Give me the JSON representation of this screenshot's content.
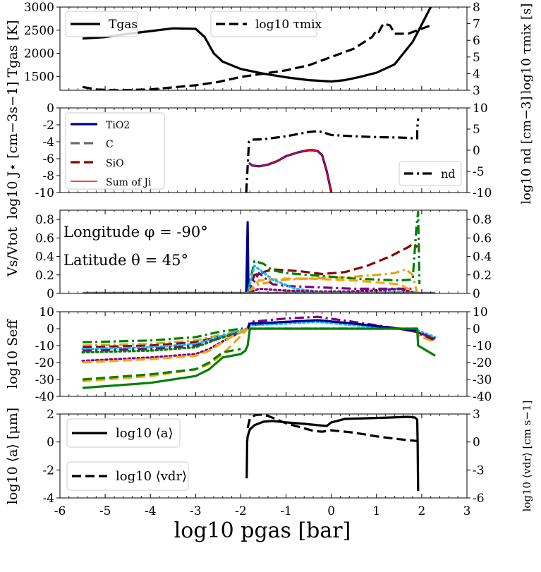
{
  "figure": {
    "longitude_label": "Longitude φ = -90°",
    "latitude_label": "Latitude θ = 45°",
    "shared_xlabel": "log10 pgas [bar]"
  },
  "chart_data": [
    {
      "type": "line",
      "panel": "temperature",
      "xlim": [
        -6,
        3
      ],
      "ylabel": "Tgas [K]",
      "ylim": [
        1200,
        3000
      ],
      "yticks": [
        1500,
        2000,
        2500,
        3000
      ],
      "y2label": "log10 τmix [s]",
      "y2lim": [
        3,
        8
      ],
      "y2ticks": [
        3,
        4,
        5,
        6,
        7,
        8
      ],
      "series": [
        {
          "name": "Tgas",
          "axis": "left",
          "style": "solid",
          "color": "#000000",
          "x": [
            -5.5,
            -5.0,
            -4.5,
            -4.0,
            -3.5,
            -3.0,
            -2.8,
            -2.6,
            -2.4,
            -2.0,
            -1.5,
            -1.0,
            -0.5,
            0.0,
            0.3,
            0.6,
            1.0,
            1.4,
            1.8,
            2.2
          ],
          "y": [
            2320,
            2350,
            2420,
            2480,
            2540,
            2530,
            2350,
            2000,
            1820,
            1660,
            1560,
            1480,
            1420,
            1390,
            1420,
            1480,
            1580,
            1760,
            2250,
            3000
          ]
        },
        {
          "name": "log10 τmix",
          "axis": "right",
          "style": "dashed",
          "color": "#000000",
          "x": [
            -5.5,
            -5.2,
            -4.8,
            -4.0,
            -3.0,
            -2.5,
            -2.0,
            -1.5,
            -1.0,
            -0.5,
            0.0,
            0.5,
            0.9,
            1.0,
            1.05,
            1.15,
            1.3,
            1.4,
            1.5,
            1.7,
            1.9,
            2.2
          ],
          "y": [
            3.2,
            3.05,
            3.0,
            3.05,
            3.3,
            3.5,
            3.8,
            4.0,
            4.2,
            4.5,
            5.0,
            5.5,
            6.2,
            6.6,
            6.5,
            7.0,
            6.9,
            6.4,
            6.4,
            6.4,
            6.6,
            6.9
          ]
        }
      ]
    },
    {
      "type": "line",
      "panel": "nucleation",
      "xlim": [
        -6,
        3
      ],
      "ylabel": "log10 J⋆ [cm−3s−1]",
      "ylim": [
        -10,
        0
      ],
      "yticks": [
        -10,
        -8,
        -6,
        -4,
        -2,
        0
      ],
      "y2label": "log10 nd [cm−3]",
      "y2lim": [
        -10,
        10
      ],
      "y2ticks": [
        -10,
        -5,
        0,
        5,
        10
      ],
      "series": [
        {
          "name": "TiO2",
          "axis": "left",
          "style": "solid",
          "color": "#00008b",
          "x": [
            -1.82,
            -1.75,
            -1.6,
            -1.4,
            -1.2,
            -1.0,
            -0.7,
            -0.5,
            -0.4,
            -0.3,
            -0.2,
            -0.1,
            0.0
          ],
          "y": [
            -6.5,
            -6.8,
            -6.9,
            -6.7,
            -6.3,
            -5.7,
            -5.2,
            -5.0,
            -5.0,
            -5.1,
            -5.6,
            -7.5,
            -10.0
          ]
        },
        {
          "name": "C",
          "axis": "left",
          "style": "dashed",
          "color": "#696969",
          "x": [],
          "y": []
        },
        {
          "name": "SiO",
          "axis": "left",
          "style": "dashed",
          "color": "#8b0000",
          "x": [],
          "y": []
        },
        {
          "name": "Sum of Ji",
          "axis": "left",
          "style": "solid",
          "color": "#ff0000",
          "x": [
            -1.82,
            -1.75,
            -1.6,
            -1.4,
            -1.2,
            -1.0,
            -0.7,
            -0.5,
            -0.4,
            -0.3,
            -0.2,
            -0.1,
            0.0
          ],
          "y": [
            -6.5,
            -6.8,
            -6.9,
            -6.7,
            -6.3,
            -5.7,
            -5.2,
            -5.0,
            -5.0,
            -5.1,
            -5.6,
            -7.5,
            -10.0
          ]
        },
        {
          "name": "nd",
          "axis": "right",
          "style": "dashdot",
          "color": "#000000",
          "x": [
            -1.88,
            -1.82,
            -1.75,
            -1.5,
            -1.0,
            -0.5,
            -0.3,
            -0.2,
            0.0,
            0.5,
            1.0,
            1.5,
            1.9,
            1.9,
            1.92
          ],
          "y": [
            -10,
            2.0,
            2.5,
            2.6,
            3.3,
            4.3,
            4.5,
            4.3,
            3.6,
            3.3,
            3.1,
            3.0,
            2.8,
            5.0,
            7.5
          ]
        }
      ],
      "legend_right": {
        "name": "nd"
      }
    },
    {
      "type": "line",
      "panel": "volume_fractions",
      "xlim": [
        -6,
        3
      ],
      "ylabel": "Vs/Vtot",
      "ylim": [
        0,
        0.9
      ],
      "yticks": [
        0.0,
        0.2,
        0.4,
        0.6,
        0.8
      ],
      "y2ticks": [
        0.0,
        0.2,
        0.4,
        0.6,
        0.8
      ],
      "series": [
        {
          "name": "TiO2 spike",
          "style": "solid",
          "color": "#00008b",
          "x": [
            -1.88,
            -1.85,
            -1.83,
            -1.8
          ],
          "y": [
            0.0,
            0.77,
            0.02,
            0.0
          ]
        },
        {
          "name": "darkred dashed",
          "style": "dashed",
          "color": "#8b0000",
          "x": [
            -1.85,
            -1.7,
            -1.3,
            -0.7,
            -0.2,
            0.3,
            0.8,
            1.3,
            1.7,
            1.82,
            1.9
          ],
          "y": [
            0.0,
            0.2,
            0.26,
            0.24,
            0.21,
            0.23,
            0.3,
            0.4,
            0.5,
            0.54,
            0.5
          ]
        },
        {
          "name": "goldenrod dashdot",
          "style": "dashdot",
          "color": "#daa520",
          "x": [
            -1.85,
            -1.6,
            -1.0,
            -0.5,
            0.0,
            0.5,
            1.0,
            1.4,
            1.65,
            1.8,
            1.9
          ],
          "y": [
            0.0,
            0.1,
            0.15,
            0.16,
            0.17,
            0.18,
            0.2,
            0.22,
            0.26,
            0.2,
            0.0
          ]
        },
        {
          "name": "green dashdot",
          "style": "dashdot",
          "color": "#008000",
          "x": [
            -1.85,
            -1.7,
            -1.5,
            -1.3,
            -1.0,
            -0.5,
            0.0,
            0.5,
            1.0,
            1.5,
            1.8,
            1.88,
            1.92,
            1.95
          ],
          "y": [
            0.0,
            0.35,
            0.32,
            0.25,
            0.22,
            0.2,
            0.18,
            0.16,
            0.15,
            0.14,
            0.15,
            0.7,
            0.88,
            0.1
          ]
        },
        {
          "name": "purple dashdot",
          "style": "dashdot",
          "color": "#800080",
          "x": [
            -1.85,
            -1.6,
            -1.3,
            -1.0,
            -0.5,
            0.0,
            0.5,
            1.0,
            1.5,
            1.8
          ],
          "y": [
            0.0,
            0.22,
            0.1,
            0.08,
            0.07,
            0.06,
            0.05,
            0.05,
            0.05,
            0.05
          ]
        },
        {
          "name": "orange dashed",
          "style": "dashed",
          "color": "#ffa500",
          "x": [
            -1.85,
            -1.6,
            -1.0,
            -0.5,
            0.0,
            0.5,
            1.0,
            1.5,
            1.9
          ],
          "y": [
            0.0,
            0.14,
            0.16,
            0.16,
            0.15,
            0.14,
            0.12,
            0.1,
            0.0
          ]
        },
        {
          "name": "deepskyblue dotted",
          "style": "dotted",
          "color": "#00bfff",
          "x": [
            -1.85,
            -1.7,
            -1.3,
            -0.8,
            -0.3,
            0.2,
            0.7,
            1.2,
            1.7,
            1.9
          ],
          "y": [
            0.0,
            0.3,
            0.15,
            0.05,
            0.02,
            0.02,
            0.02,
            0.02,
            0.02,
            0.0
          ]
        },
        {
          "name": "purple dotted",
          "style": "dotted",
          "color": "#800080",
          "x": [
            -1.85,
            -1.6,
            -1.0,
            -0.3,
            0.3,
            0.9,
            1.5,
            1.9
          ],
          "y": [
            0.0,
            0.05,
            0.03,
            0.02,
            0.02,
            0.03,
            0.05,
            0.0
          ]
        },
        {
          "name": "baseline",
          "style": "solid",
          "color": "#6a6a6a",
          "x": [
            -5.5,
            2.3
          ],
          "y": [
            0.005,
            0.005
          ]
        }
      ]
    },
    {
      "type": "line",
      "panel": "supersaturation",
      "xlim": [
        -6,
        3
      ],
      "ylabel": "log10 Seff",
      "ylim": [
        -40,
        10
      ],
      "yticks": [
        -40,
        -30,
        -20,
        -10,
        0,
        10
      ],
      "y2ticks": [
        -40,
        -30,
        -20,
        -10,
        0,
        10
      ],
      "series": [
        {
          "name": "green dashdot upper",
          "style": "dashdot",
          "color": "#008000",
          "x": [
            -5.5,
            -4.0,
            -3.0,
            -2.5,
            -2.0,
            -1.85,
            -1.8,
            0.0,
            1.9,
            1.92,
            2.3
          ],
          "y": [
            -8,
            -7,
            -5,
            -2,
            0,
            0,
            0,
            0,
            0,
            -3,
            -6
          ]
        },
        {
          "name": "goldenrod dashdot",
          "style": "dashdot",
          "color": "#daa520",
          "x": [
            -5.5,
            -4.0,
            -3.0,
            -2.5,
            -2.0,
            -1.85,
            -1.8,
            0.0,
            1.9,
            1.92,
            2.3
          ],
          "y": [
            -10,
            -9,
            -7,
            -4,
            -1,
            0,
            0,
            0,
            0,
            -4,
            -8
          ]
        },
        {
          "name": "darkred dashed",
          "style": "dashed",
          "color": "#8b0000",
          "x": [
            -5.5,
            -4.0,
            -3.0,
            -2.5,
            -2.0,
            -1.85,
            -1.8,
            -1.0,
            -0.3,
            0.5,
            1.5,
            1.9,
            2.3
          ],
          "y": [
            -11,
            -10,
            -8,
            -5,
            -2,
            0,
            2,
            4,
            5,
            3,
            0,
            -2,
            -7
          ]
        },
        {
          "name": "deepskyblue dotted",
          "style": "dotted",
          "color": "#00bfff",
          "x": [
            -5.5,
            -4.0,
            -3.0,
            -2.5,
            -2.0,
            -1.85,
            -1.8,
            -1.0,
            -0.3,
            0.5,
            1.5,
            1.9,
            2.3
          ],
          "y": [
            -12,
            -11,
            -9,
            -5,
            -1,
            0,
            2,
            3,
            4,
            2,
            0,
            -1,
            -5
          ]
        },
        {
          "name": "purple dashdot",
          "style": "dashdot",
          "color": "#800080",
          "x": [
            -5.5,
            -4.0,
            -3.0,
            -2.5,
            -2.0,
            -1.85,
            -1.8,
            -1.0,
            -0.3,
            0.5,
            1.5,
            1.9,
            2.3
          ],
          "y": [
            -13,
            -12,
            -10,
            -6,
            -2,
            0,
            4,
            6,
            7,
            4,
            0,
            -2,
            -6
          ]
        },
        {
          "name": "navy solid",
          "style": "solid",
          "color": "#00008b",
          "x": [
            -1.85,
            -1.8,
            -1.0,
            -0.3,
            0.5,
            1.5,
            1.9
          ],
          "y": [
            0,
            3,
            4,
            5,
            3,
            0,
            -1
          ]
        },
        {
          "name": "green dotted",
          "style": "dotted",
          "color": "#008000",
          "x": [
            -5.5,
            -4.0,
            -3.0,
            -2.5,
            -2.0,
            -1.85
          ],
          "y": [
            -14,
            -13,
            -11,
            -6,
            -2,
            0
          ]
        },
        {
          "name": "purple dotted",
          "style": "dotted",
          "color": "#800080",
          "x": [
            -5.5,
            -4.0,
            -3.0,
            -2.7,
            -2.3,
            -2.0,
            -1.85
          ],
          "y": [
            -19,
            -17,
            -15,
            -12,
            -6,
            -2,
            0
          ]
        },
        {
          "name": "orange dashed upper",
          "style": "dashed",
          "color": "#ffa500",
          "x": [
            -5.5,
            -4.0,
            -3.0,
            -2.7,
            -2.4,
            -2.1,
            -1.85
          ],
          "y": [
            -20,
            -18,
            -16,
            -13,
            -8,
            -3,
            0
          ]
        },
        {
          "name": "orange dashed lower",
          "style": "dashed",
          "color": "#ffa500",
          "x": [
            -5.5,
            -4.0,
            -3.0,
            -2.7,
            -2.4,
            -2.1,
            -1.85
          ],
          "y": [
            -31,
            -28,
            -24,
            -21,
            -15,
            -7,
            0
          ]
        },
        {
          "name": "green dashed",
          "style": "dashed",
          "color": "#008000",
          "x": [
            -5.5,
            -4.0,
            -3.0,
            -2.7,
            -2.4,
            -2.0
          ],
          "y": [
            -30,
            -27,
            -24,
            -20,
            -14,
            -12
          ]
        },
        {
          "name": "green solid",
          "style": "solid",
          "color": "#008000",
          "x": [
            -5.5,
            -4.0,
            -3.0,
            -2.7,
            -2.4,
            -2.0,
            -1.9,
            -1.85,
            -1.8,
            0.0,
            1.9,
            1.92,
            2.3
          ],
          "y": [
            -35,
            -32,
            -28,
            -24,
            -17,
            -15,
            -13,
            -10,
            0,
            0,
            0,
            -10,
            -16
          ]
        }
      ]
    },
    {
      "type": "line",
      "panel": "grain_size",
      "xlim": [
        -6,
        3
      ],
      "xticks": [
        -6,
        -5,
        -4,
        -3,
        -2,
        -1,
        0,
        1,
        2,
        3
      ],
      "ylabel": "log10 ⟨a⟩ [μm]",
      "ylim": [
        -4,
        2
      ],
      "yticks": [
        -4,
        -2,
        0,
        2
      ],
      "y2label": "log10 ⟨vdr⟩ [cm s−1]",
      "y2lim": [
        -6,
        3
      ],
      "y2ticks": [
        -6,
        -3,
        0,
        3
      ],
      "series": [
        {
          "name": "log10 ⟨a⟩",
          "axis": "left",
          "style": "solid",
          "color": "#000000",
          "x": [
            -1.87,
            -1.86,
            -1.85,
            -1.8,
            -1.7,
            -1.5,
            -1.3,
            -1.0,
            -0.6,
            -0.3,
            -0.1,
            0.0,
            0.3,
            0.8,
            1.3,
            1.7,
            1.85,
            1.9,
            1.91,
            1.92
          ],
          "y": [
            -2.6,
            0.0,
            0.4,
            0.9,
            1.2,
            1.45,
            1.5,
            1.4,
            1.3,
            1.2,
            1.15,
            1.4,
            1.65,
            1.7,
            1.75,
            1.8,
            1.75,
            1.6,
            0.0,
            -3.5
          ]
        },
        {
          "name": "log10 ⟨vdr⟩",
          "axis": "right",
          "style": "dashed",
          "color": "#000000",
          "x": [
            -1.85,
            -1.8,
            -1.7,
            -1.6,
            -1.4,
            -1.2,
            -1.0,
            -0.7,
            -0.4,
            -0.2,
            0.0,
            0.5,
            1.0,
            1.5,
            1.9
          ],
          "y": [
            1.5,
            2.5,
            2.85,
            2.95,
            2.8,
            2.4,
            2.0,
            1.6,
            1.2,
            1.1,
            1.25,
            1.0,
            0.6,
            0.3,
            0.1
          ]
        }
      ]
    }
  ]
}
